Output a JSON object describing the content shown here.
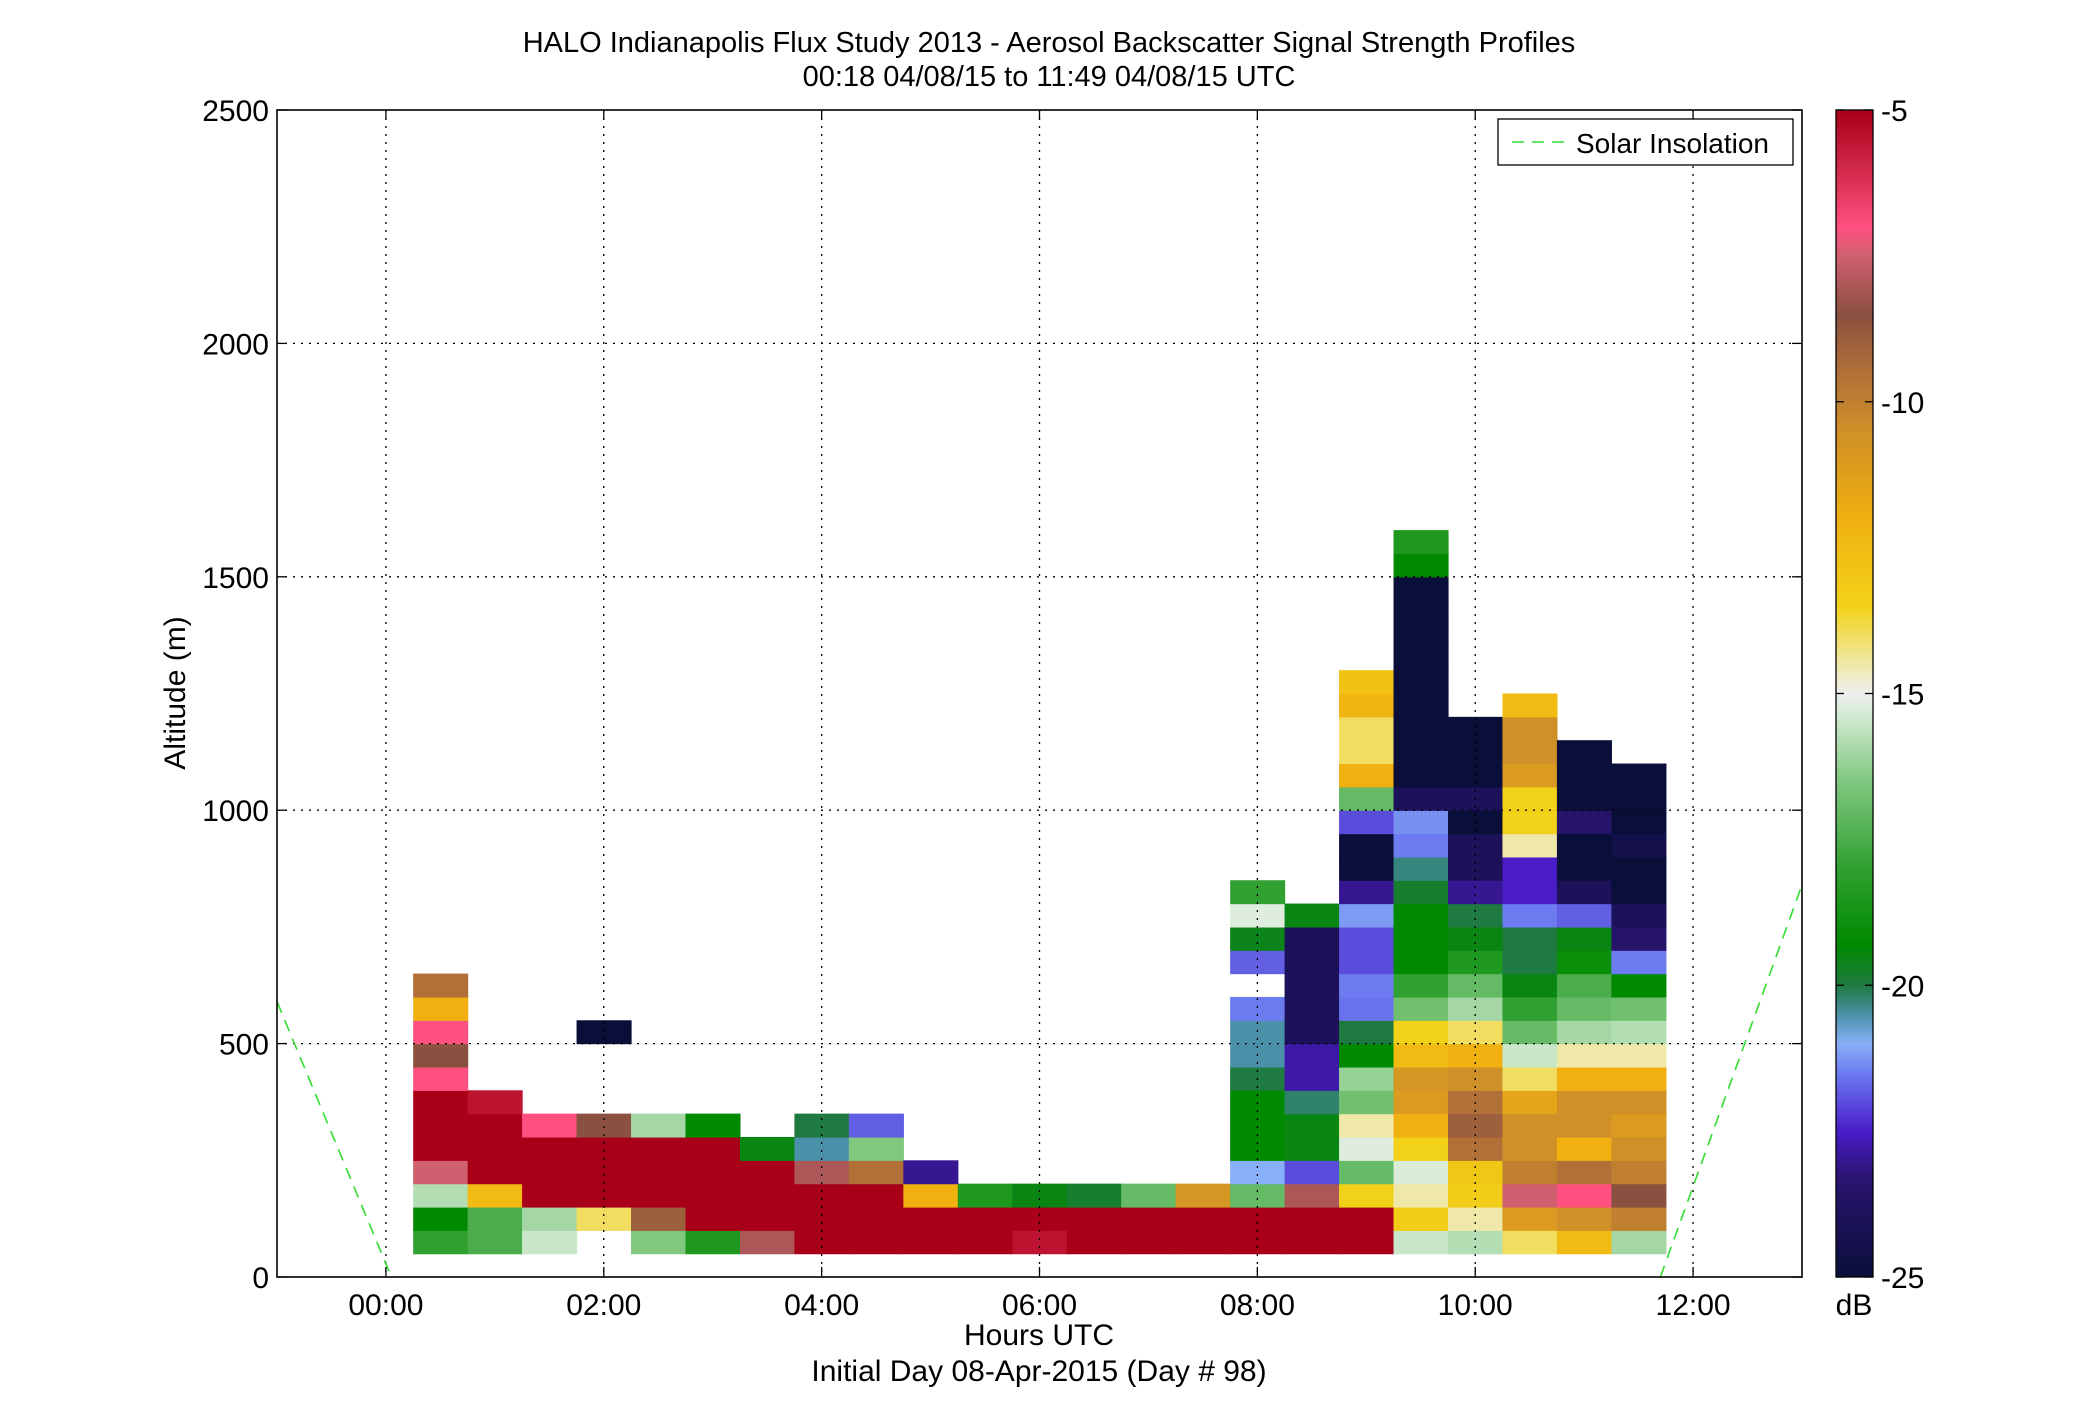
{
  "chart_data": {
    "type": "heatmap",
    "title": "HALO Indianapolis Flux Study 2013 - Aerosol Backscatter Signal Strength Profiles",
    "subtitle": "00:18 04/08/15 to 11:49 04/08/15  UTC",
    "xlabel": "Hours UTC",
    "xlabel2": "Initial Day 08-Apr-2015 (Day # 98)",
    "ylabel": "Altitude (m)",
    "xlim": [
      -1.0,
      13.0
    ],
    "ylim": [
      0,
      2500
    ],
    "x_ticks": [
      0,
      2,
      4,
      6,
      8,
      10,
      12
    ],
    "x_tick_labels": [
      "00:00",
      "02:00",
      "04:00",
      "06:00",
      "08:00",
      "10:00",
      "12:00"
    ],
    "y_ticks": [
      0,
      500,
      1000,
      1500,
      2000,
      2500
    ],
    "y_tick_labels": [
      "0",
      "500",
      "1000",
      "1500",
      "2000",
      "2500"
    ],
    "grid": true,
    "legend": {
      "position": "top-right",
      "entries": [
        "Solar Insolation"
      ]
    },
    "colorbar": {
      "range": [
        -25,
        -5
      ],
      "ticks": [
        -5,
        -10,
        -15,
        -20,
        -25
      ],
      "tick_labels": [
        "-5",
        "-10",
        "-15",
        "-20",
        "-25"
      ],
      "unit": "dB",
      "stops": [
        {
          "v": -25,
          "c": "#0a0f3a"
        },
        {
          "v": -23.3,
          "c": "#2a1470"
        },
        {
          "v": -22.5,
          "c": "#4a1cc8"
        },
        {
          "v": -21.5,
          "c": "#6c7cf0"
        },
        {
          "v": -21,
          "c": "#88b0f8"
        },
        {
          "v": -20.5,
          "c": "#4a90a8"
        },
        {
          "v": -20,
          "c": "#1e7a40"
        },
        {
          "v": -19.3,
          "c": "#008a00"
        },
        {
          "v": -18,
          "c": "#30a030"
        },
        {
          "v": -16.5,
          "c": "#80c880"
        },
        {
          "v": -15.3,
          "c": "#d8ecd8"
        },
        {
          "v": -15,
          "c": "#eeeeee"
        },
        {
          "v": -14.5,
          "c": "#f0e8a8"
        },
        {
          "v": -13.5,
          "c": "#f2d218"
        },
        {
          "v": -12,
          "c": "#f0b010"
        },
        {
          "v": -10.5,
          "c": "#d09028"
        },
        {
          "v": -9.5,
          "c": "#b07038"
        },
        {
          "v": -8.5,
          "c": "#8a5040"
        },
        {
          "v": -7.5,
          "c": "#d06070"
        },
        {
          "v": -7,
          "c": "#ff5080"
        },
        {
          "v": -6,
          "c": "#d02848"
        },
        {
          "v": -5,
          "c": "#a80018"
        }
      ]
    },
    "cell_width_h": 0.5,
    "cell_height_m": 50,
    "columns": [
      {
        "x": 0.5,
        "y0": 50,
        "values": [
          -18.0,
          -19.3,
          -15.8,
          -7.5,
          -5.0,
          -5.0,
          -5.0,
          -7.0,
          -8.5,
          -7.0,
          -12.0,
          -9.5
        ]
      },
      {
        "x": 1.0,
        "y0": 50,
        "values": [
          -17.5,
          -17.5,
          -12.5,
          -5.0,
          -5.0,
          -5.0,
          -5.5
        ]
      },
      {
        "x": 1.5,
        "y0": 50,
        "values": [
          -15.5,
          -16.0,
          -5.0,
          -5.0,
          -5.0,
          -7.0
        ]
      },
      {
        "x": 2.0,
        "y0": 100,
        "values": [
          -14.0,
          -5.0,
          -5.0,
          -5.0,
          -8.5
        ]
      },
      {
        "x": 2.0,
        "y0": 500,
        "values": [
          -25.0
        ]
      },
      {
        "x": 2.5,
        "y0": 50,
        "values": [
          -16.5,
          -9.0,
          -5.0,
          -5.0,
          -5.0,
          -16.0
        ]
      },
      {
        "x": 3.0,
        "y0": 50,
        "values": [
          -18.5,
          -5.0,
          -5.0,
          -5.0,
          -5.0,
          -19.3
        ]
      },
      {
        "x": 3.5,
        "y0": 50,
        "values": [
          -8.0,
          -5.0,
          -5.0,
          -5.0,
          -19.5
        ]
      },
      {
        "x": 4.0,
        "y0": 50,
        "values": [
          -5.0,
          -5.0,
          -5.0,
          -8.0,
          -20.5,
          -20.0
        ]
      },
      {
        "x": 4.5,
        "y0": 50,
        "values": [
          -5.0,
          -5.0,
          -5.0,
          -9.5,
          -16.5,
          -21.8
        ]
      },
      {
        "x": 5.0,
        "y0": 50,
        "values": [
          -5.0,
          -5.0,
          -12.0,
          -23.0
        ]
      },
      {
        "x": 5.5,
        "y0": 50,
        "values": [
          -5.0,
          -5.0,
          -18.5
        ]
      },
      {
        "x": 6.0,
        "y0": 50,
        "values": [
          -5.5,
          -5.0,
          -19.5
        ]
      },
      {
        "x": 6.5,
        "y0": 50,
        "values": [
          -5.0,
          -5.0,
          -19.8
        ]
      },
      {
        "x": 7.0,
        "y0": 50,
        "values": [
          -5.0,
          -5.0,
          -17.0
        ]
      },
      {
        "x": 7.5,
        "y0": 50,
        "values": [
          -5.0,
          -5.0,
          -10.8
        ]
      },
      {
        "x": 8.0,
        "y0": 50,
        "values": [
          -5.0,
          -5.0,
          -17.0,
          -21.0,
          -19.3,
          -19.3,
          -19.3,
          -20.0,
          -20.5,
          -20.5,
          -21.5,
          null,
          -21.8,
          -19.6,
          -15.2,
          -18.0
        ]
      },
      {
        "x": 8.5,
        "y0": 50,
        "values": [
          -5.0,
          -5.0,
          -8.0,
          -22.0,
          -19.5,
          -19.5,
          -20.2,
          -22.8,
          -22.8,
          -24.0,
          -24.0,
          -24.0,
          -24.0,
          -24.0,
          -19.5
        ]
      },
      {
        "x": 9.0,
        "y0": 50,
        "values": [
          -5.0,
          -5.0,
          -13.5,
          -17.0,
          -15.2,
          -14.5,
          -16.8,
          -16.2,
          -19.3,
          -20.0,
          -21.6,
          -21.5,
          -22.0,
          -22.0,
          -21.2,
          -23.0,
          -25.0,
          -25.0,
          -22.0,
          -17.0,
          -12.0,
          -14.0,
          -14.0,
          -12.2,
          -12.8
        ]
      },
      {
        "x": 9.5,
        "y0": 50,
        "values": [
          -15.5,
          -13.3,
          -14.5,
          -15.3,
          -13.5,
          -12.0,
          -11.0,
          -10.8,
          -12.5,
          -13.5,
          -16.8,
          -18.0,
          -19.3,
          -19.3,
          -19.3,
          -19.8,
          -20.3,
          -21.5,
          -21.3,
          -24.0,
          -25.0,
          -25.0,
          -25.0,
          -25.0,
          -25.0,
          -25.0,
          -25.0,
          -25.0,
          -25.0,
          -19.3,
          -18.5
        ]
      },
      {
        "x": 10.0,
        "y0": 50,
        "values": [
          -15.8,
          -14.5,
          -13.3,
          -13.0,
          -9.5,
          -9.0,
          -9.5,
          -10.5,
          -12.0,
          -14.0,
          -16.0,
          -17.0,
          -18.5,
          -19.5,
          -20.0,
          -23.0,
          -24.0,
          -24.0,
          -25.0,
          -24.0,
          -25.0,
          -25.0,
          -25.0
        ]
      },
      {
        "x": 10.5,
        "y0": 50,
        "values": [
          -14.0,
          -11.0,
          -7.5,
          -10.0,
          -10.5,
          -10.5,
          -11.5,
          -14.0,
          -15.5,
          -17.0,
          -18.0,
          -19.5,
          -20.0,
          -20.0,
          -21.5,
          -22.5,
          -22.5,
          -14.5,
          -13.5,
          -13.5,
          -11.0,
          -10.5,
          -10.5,
          -12.5
        ]
      },
      {
        "x": 11.0,
        "y0": 50,
        "values": [
          -12.5,
          -10.5,
          -7.0,
          -9.5,
          -12.0,
          -10.5,
          -10.5,
          -12.0,
          -14.5,
          -16.0,
          -17.0,
          -17.5,
          -19.0,
          -19.5,
          -21.8,
          -24.0,
          -25.0,
          -25.0,
          -23.5,
          -25.0,
          -25.0,
          -25.0
        ]
      },
      {
        "x": 11.5,
        "y0": 50,
        "values": [
          -16.0,
          -10.0,
          -8.5,
          -10.0,
          -10.5,
          -11.0,
          -10.5,
          -12.0,
          -14.5,
          -15.8,
          -16.8,
          -19.3,
          -21.5,
          -23.5,
          -24.0,
          -25.0,
          -25.0,
          -24.5,
          -25.0,
          -25.0,
          -25.0
        ]
      }
    ],
    "series": [
      {
        "name": "Solar Insolation",
        "style": "dashed",
        "color": "#33dd33",
        "x": [
          -1.0,
          0.05
        ],
        "y": [
          590,
          0
        ]
      },
      {
        "name": "Solar Insolation",
        "style": "dashed",
        "color": "#33dd33",
        "x": [
          11.7,
          13.0
        ],
        "y": [
          0,
          840
        ]
      }
    ]
  }
}
